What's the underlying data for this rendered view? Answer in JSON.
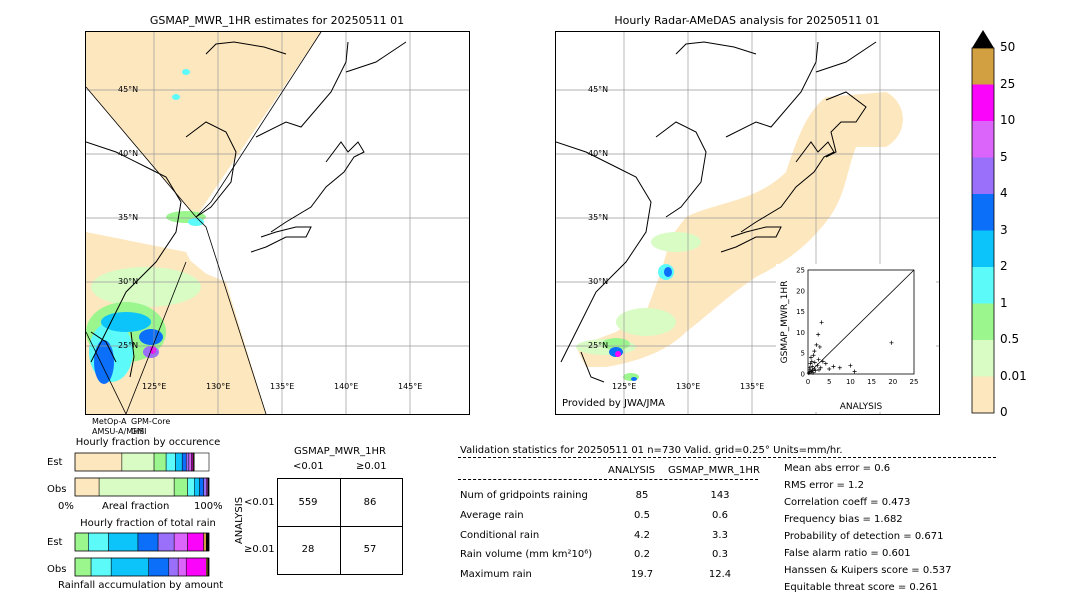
{
  "left_map": {
    "title": "GSMAP_MWR_1HR estimates for 20250511 01",
    "lat_labels": [
      "45°N",
      "40°N",
      "35°N",
      "30°N",
      "25°N"
    ],
    "lon_labels": [
      "125°E",
      "130°E",
      "135°E",
      "140°E",
      "145°E"
    ],
    "sensor_labels": [
      "MetOp-A",
      "AMSU-A/MHS",
      "GPM-Core",
      "GMI"
    ]
  },
  "right_map": {
    "title": "Hourly Radar-AMeDAS analysis for 20250511 01",
    "lat_labels": [
      "45°N",
      "40°N",
      "35°N",
      "30°N",
      "25°N"
    ],
    "lon_labels": [
      "125°E",
      "130°E",
      "135°E"
    ],
    "credit": "Provided by JWA/JMA"
  },
  "colorbar": {
    "ticks": [
      "0",
      "0.01",
      "0.5",
      "1",
      "2",
      "3",
      "4",
      "5",
      "10",
      "25",
      "50"
    ],
    "colors": [
      "#fde7be",
      "#d8fcc4",
      "#9cf68e",
      "#5cfaf8",
      "#0cc4fa",
      "#0c6ffa",
      "#9a6ffa",
      "#db64fa",
      "#fb04fa",
      "#d2a040"
    ],
    "over_color": "#000000"
  },
  "chart_data": [
    {
      "type": "scatter",
      "title": "",
      "xlabel": "ANALYSIS",
      "ylabel": "GSMAP_MWR_1HR",
      "xlim": [
        0,
        25
      ],
      "ylim": [
        0,
        25
      ],
      "xticks": [
        "0",
        "5",
        "10",
        "15",
        "20",
        "25"
      ],
      "yticks": [
        "0",
        "5",
        "10",
        "15",
        "20",
        "25"
      ],
      "points": [
        [
          0.3,
          0.4
        ],
        [
          0.5,
          1.0
        ],
        [
          0.8,
          0.6
        ],
        [
          1.0,
          1.8
        ],
        [
          1.2,
          0.3
        ],
        [
          0.6,
          2.5
        ],
        [
          1.5,
          1.2
        ],
        [
          0.9,
          3.0
        ],
        [
          1.8,
          0.8
        ],
        [
          2.2,
          2.0
        ],
        [
          0.4,
          1.5
        ],
        [
          1.1,
          0.9
        ],
        [
          2.5,
          3.5
        ],
        [
          0.7,
          4.0
        ],
        [
          1.6,
          2.8
        ],
        [
          3.0,
          1.5
        ],
        [
          2.0,
          7.0
        ],
        [
          2.4,
          9.5
        ],
        [
          2.8,
          6.5
        ],
        [
          3.2,
          12.4
        ],
        [
          1.5,
          5.5
        ],
        [
          3.5,
          3.0
        ],
        [
          4.2,
          2.5
        ],
        [
          5.0,
          1.2
        ],
        [
          6.0,
          1.8
        ],
        [
          7.5,
          1.5
        ],
        [
          10.0,
          2.0
        ],
        [
          11.0,
          0.6
        ],
        [
          19.7,
          7.5
        ],
        [
          0.2,
          0.2
        ],
        [
          1.3,
          4.5
        ],
        [
          2.6,
          1.0
        ]
      ]
    },
    {
      "type": "bar",
      "title": "Hourly fraction by occurence",
      "xlabel": "Areal fraction",
      "rows": [
        "Est",
        "Obs"
      ],
      "axis_left": "0%",
      "axis_right": "100%",
      "segments": {
        "Est": [
          0.35,
          0.24,
          0.09,
          0.07,
          0.05,
          0.03,
          0.02,
          0.02,
          0.01,
          0.005,
          0.005
        ],
        "Obs": [
          0.18,
          0.56,
          0.1,
          0.05,
          0.04,
          0.03,
          0.02,
          0.01,
          0.005,
          0.0025,
          0.0025
        ]
      },
      "segment_colors": [
        "#fde7be",
        "#d8fcc4",
        "#9cf68e",
        "#5cfaf8",
        "#0cc4fa",
        "#0c6ffa",
        "#9a6ffa",
        "#db64fa",
        "#fb04fa",
        "#d2a040",
        "#000000"
      ]
    },
    {
      "type": "bar",
      "title": "Hourly fraction of total rain",
      "xlabel": "Rainfall accumulation by amount",
      "rows": [
        "Est",
        "Obs"
      ],
      "segments": {
        "Est": [
          0.0,
          0.0,
          0.1,
          0.15,
          0.22,
          0.15,
          0.12,
          0.1,
          0.12,
          0.02,
          0.02
        ],
        "Obs": [
          0.0,
          0.0,
          0.12,
          0.15,
          0.28,
          0.15,
          0.07,
          0.06,
          0.15,
          0.01,
          0.01
        ]
      },
      "segment_colors": [
        "#fde7be",
        "#d8fcc4",
        "#9cf68e",
        "#5cfaf8",
        "#0cc4fa",
        "#0c6ffa",
        "#9a6ffa",
        "#db64fa",
        "#fb04fa",
        "#d2a040",
        "#000000"
      ]
    }
  ],
  "contingency": {
    "title": "GSMAP_MWR_1HR",
    "col_labels": [
      "<0.01",
      "≥0.01"
    ],
    "row_axis": "ANALYSIS",
    "row_labels": [
      "<0.01",
      "≥0.01"
    ],
    "cells": [
      "559",
      "86",
      "28",
      "57"
    ]
  },
  "validation": {
    "header": "Validation statistics for 20250511 01  n=730 Valid. grid=0.25° Units=mm/hr.",
    "col_analysis": "ANALYSIS",
    "col_gsmap": "GSMAP_MWR_1HR",
    "rows": [
      {
        "label": "Num of gridpoints raining",
        "a": "85",
        "g": "143"
      },
      {
        "label": "Average rain",
        "a": "0.5",
        "g": "0.6"
      },
      {
        "label": "Conditional rain",
        "a": "4.2",
        "g": "3.3"
      },
      {
        "label": "Rain volume (mm km²10⁶)",
        "a": "0.2",
        "g": "0.3"
      },
      {
        "label": "Maximum rain",
        "a": "19.7",
        "g": "12.4"
      }
    ],
    "scores": [
      "Mean abs error =    0.6",
      "RMS error =    1.2",
      "Correlation coeff =  0.473",
      "Frequency bias =  1.682",
      "Probability of detection =  0.671",
      "False alarm ratio =  0.601",
      "Hanssen & Kuipers score =  0.537",
      "Equitable threat score =  0.261"
    ]
  }
}
